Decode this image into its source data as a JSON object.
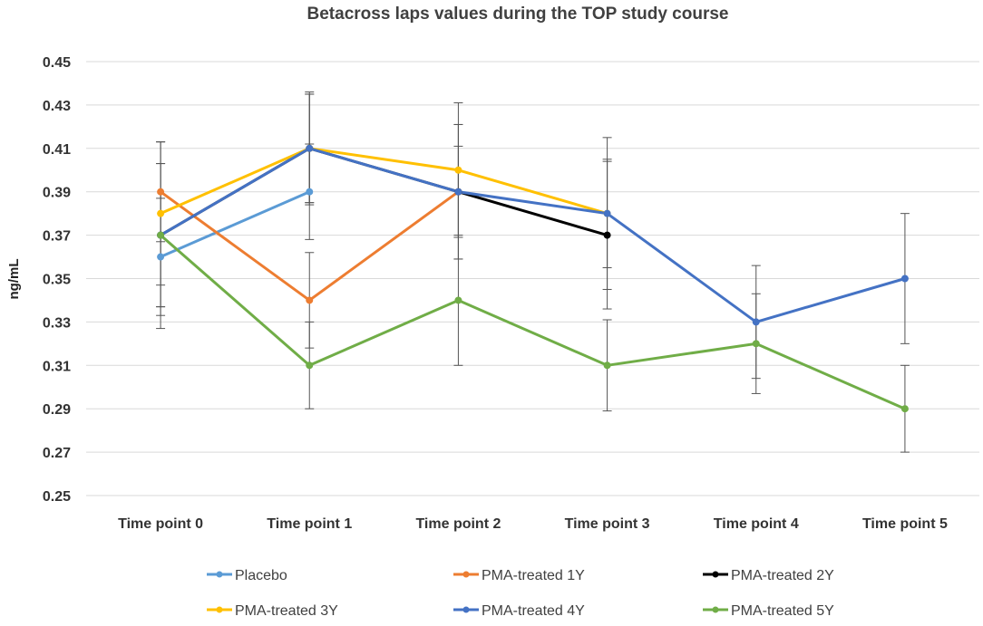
{
  "chart_data": {
    "type": "line",
    "title": "Betacross laps values during the TOP study course",
    "xlabel": "",
    "ylabel": "ng/mL",
    "categories": [
      "Time point 0",
      "Time point 1",
      "Time point 2",
      "Time point 3",
      "Time point 4",
      "Time point 5"
    ],
    "ylim": [
      0.25,
      0.45
    ],
    "yticks": [
      "0.25",
      "0.27",
      "0.29",
      "0.31",
      "0.33",
      "0.35",
      "0.37",
      "0.39",
      "0.41",
      "0.43",
      "0.45"
    ],
    "grid": true,
    "legend_position": "bottom",
    "series": [
      {
        "name": "Placebo",
        "color": "#5b9bd5",
        "values": [
          0.36,
          0.39,
          null,
          null,
          null,
          null
        ],
        "error": [
          0.027,
          0.022,
          null,
          null,
          null,
          null
        ]
      },
      {
        "name": "PMA-treated 1Y",
        "color": "#ed7d31",
        "values": [
          0.39,
          0.34,
          0.39,
          null,
          null,
          null
        ],
        "error": [
          0.023,
          0.022,
          0.031,
          null,
          null,
          null
        ]
      },
      {
        "name": "PMA-treated 2Y",
        "color": "#000000",
        "values": [
          0.37,
          0.41,
          0.39,
          0.37,
          null,
          null
        ],
        "error": [
          0.033,
          0.025,
          0.031,
          0.034,
          null,
          null
        ]
      },
      {
        "name": "PMA-treated 3Y",
        "color": "#ffc000",
        "values": [
          0.38,
          0.41,
          0.4,
          0.38,
          null,
          null
        ],
        "error": [
          0.033,
          0.026,
          0.031,
          0.035,
          null,
          null
        ]
      },
      {
        "name": "PMA-treated 4Y",
        "color": "#4472c4",
        "values": [
          0.37,
          0.41,
          0.39,
          0.38,
          0.33,
          0.35
        ],
        "error": [
          0.043,
          0.025,
          0.021,
          0.025,
          0.026,
          0.03
        ]
      },
      {
        "name": "PMA-treated 5Y",
        "color": "#70ad47",
        "values": [
          0.37,
          0.31,
          0.34,
          0.31,
          0.32,
          0.29
        ],
        "error": [
          0.033,
          0.02,
          0.03,
          0.021,
          0.023,
          0.02
        ]
      }
    ]
  }
}
